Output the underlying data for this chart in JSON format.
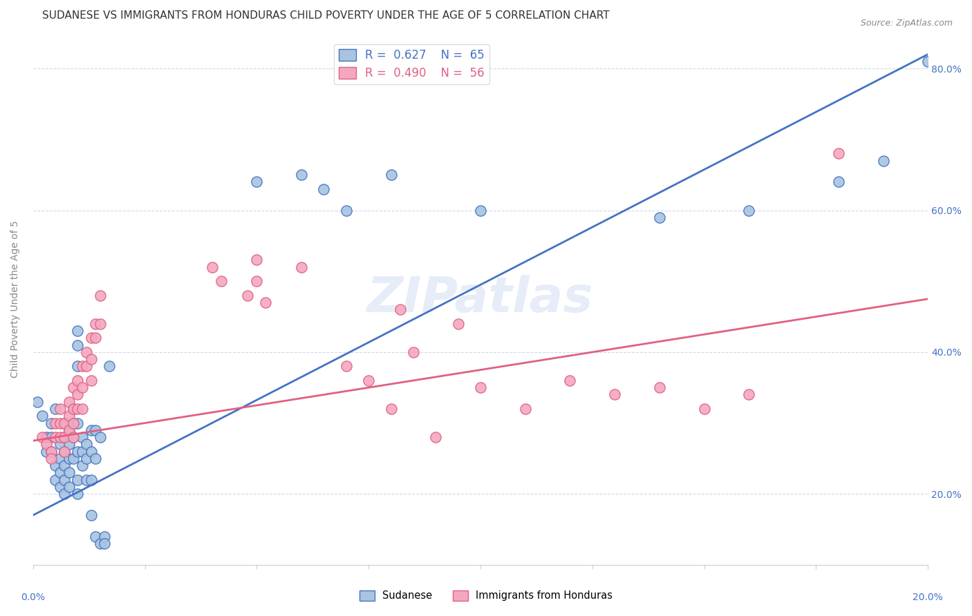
{
  "title": "SUDANESE VS IMMIGRANTS FROM HONDURAS CHILD POVERTY UNDER THE AGE OF 5 CORRELATION CHART",
  "source": "Source: ZipAtlas.com",
  "ylabel": "Child Poverty Under the Age of 5",
  "yticks": [
    0.2,
    0.4,
    0.6,
    0.8
  ],
  "ytick_labels": [
    "20.0%",
    "40.0%",
    "60.0%",
    "80.0%"
  ],
  "legend1_r": "0.627",
  "legend1_n": "65",
  "legend2_r": "0.490",
  "legend2_n": "56",
  "blue_color": "#a8c4e0",
  "pink_color": "#f4a8c0",
  "blue_line_color": "#4472c4",
  "pink_line_color": "#e06080",
  "blue_scatter": [
    [
      0.001,
      0.33
    ],
    [
      0.002,
      0.31
    ],
    [
      0.003,
      0.28
    ],
    [
      0.003,
      0.26
    ],
    [
      0.004,
      0.3
    ],
    [
      0.004,
      0.28
    ],
    [
      0.004,
      0.26
    ],
    [
      0.005,
      0.32
    ],
    [
      0.005,
      0.24
    ],
    [
      0.005,
      0.22
    ],
    [
      0.006,
      0.27
    ],
    [
      0.006,
      0.25
    ],
    [
      0.006,
      0.23
    ],
    [
      0.006,
      0.21
    ],
    [
      0.007,
      0.3
    ],
    [
      0.007,
      0.28
    ],
    [
      0.007,
      0.26
    ],
    [
      0.007,
      0.24
    ],
    [
      0.007,
      0.22
    ],
    [
      0.007,
      0.2
    ],
    [
      0.008,
      0.29
    ],
    [
      0.008,
      0.27
    ],
    [
      0.008,
      0.25
    ],
    [
      0.008,
      0.23
    ],
    [
      0.008,
      0.21
    ],
    [
      0.009,
      0.32
    ],
    [
      0.009,
      0.3
    ],
    [
      0.009,
      0.28
    ],
    [
      0.009,
      0.25
    ],
    [
      0.01,
      0.43
    ],
    [
      0.01,
      0.41
    ],
    [
      0.01,
      0.38
    ],
    [
      0.01,
      0.3
    ],
    [
      0.01,
      0.26
    ],
    [
      0.01,
      0.22
    ],
    [
      0.01,
      0.2
    ],
    [
      0.011,
      0.28
    ],
    [
      0.011,
      0.26
    ],
    [
      0.011,
      0.24
    ],
    [
      0.012,
      0.27
    ],
    [
      0.012,
      0.25
    ],
    [
      0.012,
      0.22
    ],
    [
      0.013,
      0.29
    ],
    [
      0.013,
      0.26
    ],
    [
      0.013,
      0.22
    ],
    [
      0.013,
      0.17
    ],
    [
      0.014,
      0.29
    ],
    [
      0.014,
      0.25
    ],
    [
      0.014,
      0.14
    ],
    [
      0.015,
      0.28
    ],
    [
      0.015,
      0.13
    ],
    [
      0.016,
      0.14
    ],
    [
      0.016,
      0.13
    ],
    [
      0.017,
      0.38
    ],
    [
      0.05,
      0.64
    ],
    [
      0.06,
      0.65
    ],
    [
      0.065,
      0.63
    ],
    [
      0.07,
      0.6
    ],
    [
      0.08,
      0.65
    ],
    [
      0.1,
      0.6
    ],
    [
      0.14,
      0.59
    ],
    [
      0.16,
      0.6
    ],
    [
      0.18,
      0.64
    ],
    [
      0.19,
      0.67
    ],
    [
      0.2,
      0.81
    ]
  ],
  "pink_scatter": [
    [
      0.002,
      0.28
    ],
    [
      0.003,
      0.27
    ],
    [
      0.004,
      0.26
    ],
    [
      0.004,
      0.25
    ],
    [
      0.005,
      0.3
    ],
    [
      0.005,
      0.28
    ],
    [
      0.006,
      0.32
    ],
    [
      0.006,
      0.3
    ],
    [
      0.006,
      0.28
    ],
    [
      0.007,
      0.3
    ],
    [
      0.007,
      0.28
    ],
    [
      0.007,
      0.26
    ],
    [
      0.008,
      0.33
    ],
    [
      0.008,
      0.31
    ],
    [
      0.008,
      0.29
    ],
    [
      0.009,
      0.35
    ],
    [
      0.009,
      0.32
    ],
    [
      0.009,
      0.3
    ],
    [
      0.009,
      0.28
    ],
    [
      0.01,
      0.36
    ],
    [
      0.01,
      0.34
    ],
    [
      0.01,
      0.32
    ],
    [
      0.011,
      0.38
    ],
    [
      0.011,
      0.35
    ],
    [
      0.011,
      0.32
    ],
    [
      0.012,
      0.4
    ],
    [
      0.012,
      0.38
    ],
    [
      0.013,
      0.42
    ],
    [
      0.013,
      0.39
    ],
    [
      0.013,
      0.36
    ],
    [
      0.014,
      0.44
    ],
    [
      0.014,
      0.42
    ],
    [
      0.015,
      0.48
    ],
    [
      0.015,
      0.44
    ],
    [
      0.04,
      0.52
    ],
    [
      0.042,
      0.5
    ],
    [
      0.048,
      0.48
    ],
    [
      0.05,
      0.53
    ],
    [
      0.05,
      0.5
    ],
    [
      0.052,
      0.47
    ],
    [
      0.06,
      0.52
    ],
    [
      0.07,
      0.38
    ],
    [
      0.075,
      0.36
    ],
    [
      0.08,
      0.32
    ],
    [
      0.082,
      0.46
    ],
    [
      0.085,
      0.4
    ],
    [
      0.09,
      0.28
    ],
    [
      0.095,
      0.44
    ],
    [
      0.1,
      0.35
    ],
    [
      0.11,
      0.32
    ],
    [
      0.12,
      0.36
    ],
    [
      0.13,
      0.34
    ],
    [
      0.14,
      0.35
    ],
    [
      0.15,
      0.32
    ],
    [
      0.16,
      0.34
    ],
    [
      0.18,
      0.68
    ]
  ],
  "xmin": 0.0,
  "xmax": 0.2,
  "ymin": 0.1,
  "ymax": 0.85,
  "blue_trend": [
    0.0,
    0.17,
    0.2,
    0.82
  ],
  "pink_trend": [
    0.0,
    0.275,
    0.2,
    0.475
  ],
  "background_color": "#ffffff",
  "grid_color": "#d0d8e8",
  "watermark": "ZIPatlas",
  "title_fontsize": 11,
  "axis_label_fontsize": 10,
  "tick_label_fontsize": 10
}
